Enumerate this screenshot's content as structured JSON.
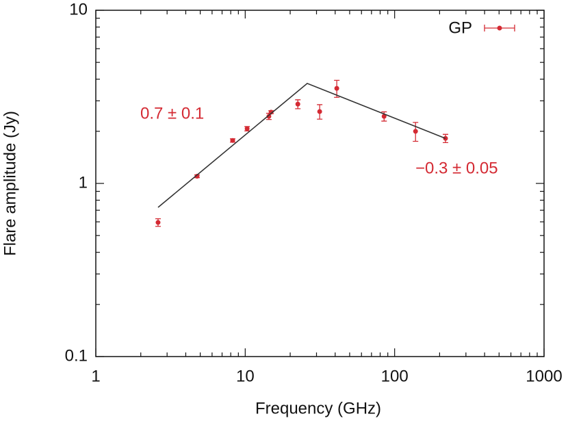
{
  "chart_data": {
    "type": "scatter",
    "xlabel": "Frequency (GHz)",
    "ylabel": "Flare amplitude (Jy)",
    "xscale": "log",
    "yscale": "log",
    "xlim": [
      1,
      1000
    ],
    "ylim": [
      0.1,
      10
    ],
    "xticks": [
      1,
      10,
      100,
      1000
    ],
    "yticks": [
      0.1,
      1,
      10
    ],
    "legend": "top-right",
    "annotations": [
      "0.7 ± 0.1",
      "−0.3 ± 0.05"
    ],
    "annotation_color": "#d42a33",
    "series": [
      {
        "name": "GP",
        "type": "scatter",
        "color": "#d42a33",
        "x": [
          2.61,
          4.76,
          8.24,
          10.3,
          14.4,
          14.9,
          22.5,
          31.5,
          41,
          85,
          138,
          219
        ],
        "values": [
          0.595,
          1.1,
          1.77,
          2.07,
          2.44,
          2.58,
          2.87,
          2.6,
          3.54,
          2.44,
          2.0,
          1.82
        ],
        "errors": [
          0.03,
          0.02,
          0.04,
          0.06,
          0.1,
          0.05,
          0.17,
          0.25,
          0.4,
          0.15,
          0.25,
          0.1
        ]
      },
      {
        "type": "line",
        "color": "#333333",
        "x": [
          2.61,
          26,
          219
        ],
        "values": [
          0.727,
          3.78,
          1.82
        ]
      }
    ]
  }
}
